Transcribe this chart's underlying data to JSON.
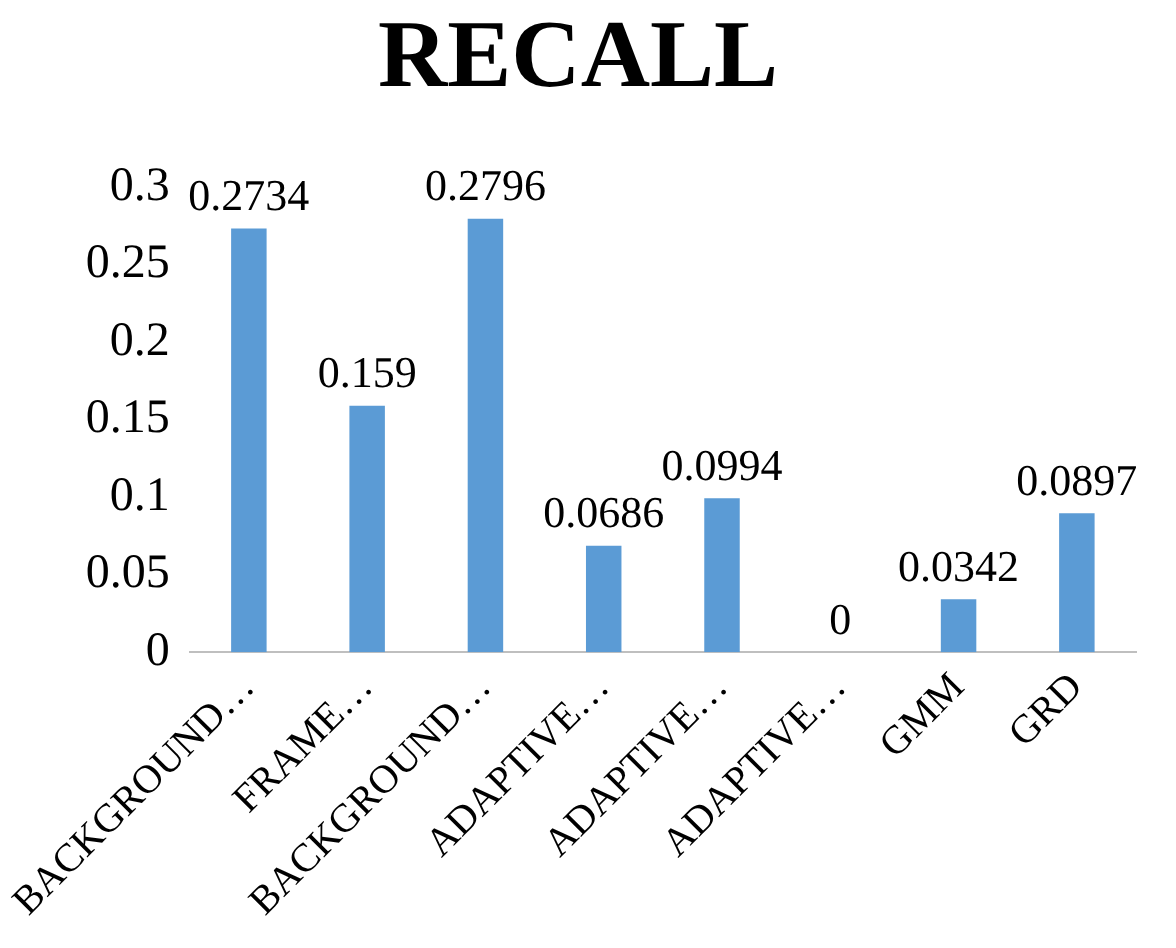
{
  "chart_data": {
    "type": "bar",
    "title": "RECALL",
    "categories": [
      "BACKGROUND…",
      "FRAME…",
      "BACKGROUND…",
      "ADAPTIVE…",
      "ADAPTIVE…",
      "ADAPTIVE…",
      "GMM",
      "GRD"
    ],
    "values": [
      0.2734,
      0.159,
      0.2796,
      0.0686,
      0.0994,
      0,
      0.0342,
      0.0897
    ],
    "color": "#5b9bd5",
    "ylim": [
      0,
      0.3
    ],
    "yticks": [
      0,
      0.05,
      0.1,
      0.15,
      0.2,
      0.25,
      0.3
    ],
    "grid": false,
    "legend": false,
    "data_labels": true
  }
}
